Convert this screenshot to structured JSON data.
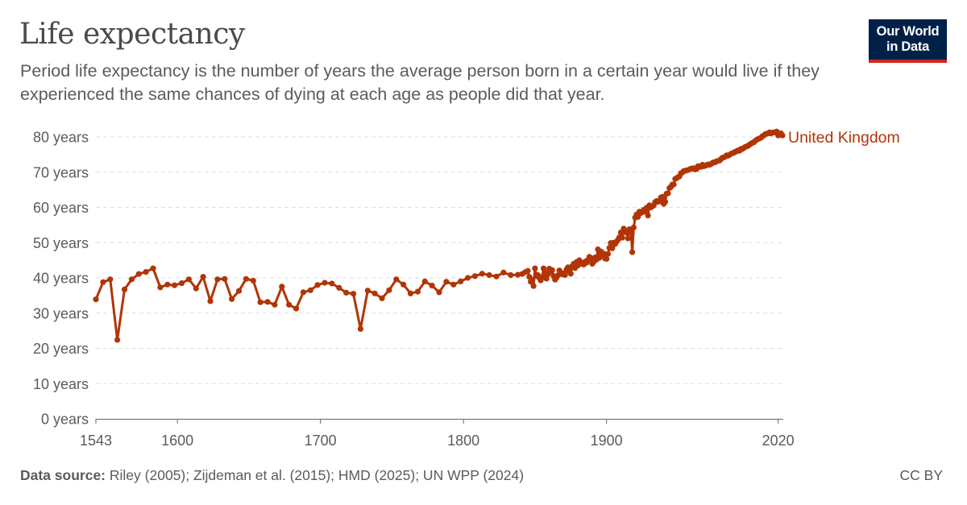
{
  "header": {
    "title": "Life expectancy",
    "subtitle": "Period life expectancy is the number of years the average person born in a certain year would live if they experienced the same chances of dying at each age as people did that year."
  },
  "logo": {
    "line1": "Our World",
    "line2": "in Data"
  },
  "footer": {
    "source_label": "Data source:",
    "source_text": "Riley (2005); Zijdeman et al. (2015); HMD (2025); UN WPP (2024)",
    "license": "CC BY"
  },
  "colors": {
    "series": "#b13507",
    "grid": "#dddddd",
    "axis": "#666666"
  },
  "chart_data": {
    "type": "line",
    "title": "Life expectancy",
    "xlabel": "",
    "ylabel": "",
    "xlim": [
      1543,
      2023
    ],
    "ylim": [
      0,
      80
    ],
    "x_ticks": [
      1543,
      1600,
      1700,
      1800,
      1900,
      2020
    ],
    "y_ticks": [
      {
        "value": 0,
        "label": "0 years"
      },
      {
        "value": 10,
        "label": "10 years"
      },
      {
        "value": 20,
        "label": "20 years"
      },
      {
        "value": 30,
        "label": "30 years"
      },
      {
        "value": 40,
        "label": "40 years"
      },
      {
        "value": 50,
        "label": "50 years"
      },
      {
        "value": 60,
        "label": "60 years"
      },
      {
        "value": 70,
        "label": "70 years"
      },
      {
        "value": 80,
        "label": "80 years"
      }
    ],
    "grid": "horizontal dashed",
    "series": [
      {
        "name": "United Kingdom",
        "color": "#b13507",
        "points": [
          [
            1543,
            33.9
          ],
          [
            1548,
            38.8
          ],
          [
            1553,
            39.6
          ],
          [
            1558,
            22.4
          ],
          [
            1563,
            36.7
          ],
          [
            1568,
            39.6
          ],
          [
            1573,
            41.1
          ],
          [
            1578,
            41.7
          ],
          [
            1583,
            42.7
          ],
          [
            1588,
            37.3
          ],
          [
            1593,
            38.1
          ],
          [
            1598,
            37.9
          ],
          [
            1603,
            38.5
          ],
          [
            1608,
            39.6
          ],
          [
            1613,
            37.0
          ],
          [
            1618,
            40.3
          ],
          [
            1623,
            33.4
          ],
          [
            1628,
            39.6
          ],
          [
            1633,
            39.7
          ],
          [
            1638,
            34.0
          ],
          [
            1643,
            36.3
          ],
          [
            1648,
            39.7
          ],
          [
            1653,
            39.2
          ],
          [
            1658,
            33.1
          ],
          [
            1663,
            33.2
          ],
          [
            1668,
            32.4
          ],
          [
            1673,
            37.5
          ],
          [
            1678,
            32.4
          ],
          [
            1683,
            31.3
          ],
          [
            1688,
            35.9
          ],
          [
            1693,
            36.5
          ],
          [
            1698,
            38.0
          ],
          [
            1703,
            38.6
          ],
          [
            1708,
            38.4
          ],
          [
            1713,
            37.2
          ],
          [
            1718,
            35.8
          ],
          [
            1723,
            35.5
          ],
          [
            1728,
            25.5
          ],
          [
            1733,
            36.4
          ],
          [
            1738,
            35.6
          ],
          [
            1743,
            34.2
          ],
          [
            1748,
            36.5
          ],
          [
            1753,
            39.6
          ],
          [
            1758,
            38.1
          ],
          [
            1763,
            35.6
          ],
          [
            1768,
            36.1
          ],
          [
            1773,
            39.0
          ],
          [
            1778,
            37.8
          ],
          [
            1783,
            35.9
          ],
          [
            1788,
            38.9
          ],
          [
            1793,
            38.1
          ],
          [
            1798,
            39.0
          ],
          [
            1803,
            40.0
          ],
          [
            1808,
            40.5
          ],
          [
            1813,
            41.2
          ],
          [
            1818,
            40.8
          ],
          [
            1823,
            40.4
          ],
          [
            1828,
            41.5
          ],
          [
            1833,
            40.8
          ],
          [
            1838,
            40.9
          ],
          [
            1841,
            41.1
          ],
          [
            1843,
            41.6
          ],
          [
            1845,
            42.0
          ],
          [
            1846,
            40.3
          ],
          [
            1847,
            38.9
          ],
          [
            1848,
            39.5
          ],
          [
            1849,
            37.7
          ],
          [
            1850,
            42.7
          ],
          [
            1851,
            40.5
          ],
          [
            1852,
            40.8
          ],
          [
            1853,
            40.0
          ],
          [
            1854,
            39.3
          ],
          [
            1855,
            40.2
          ],
          [
            1856,
            42.7
          ],
          [
            1857,
            41.5
          ],
          [
            1858,
            39.8
          ],
          [
            1859,
            41.0
          ],
          [
            1860,
            42.6
          ],
          [
            1861,
            41.8
          ],
          [
            1862,
            42.2
          ],
          [
            1863,
            40.5
          ],
          [
            1864,
            39.5
          ],
          [
            1865,
            40.0
          ],
          [
            1866,
            40.7
          ],
          [
            1867,
            42.1
          ],
          [
            1868,
            41.5
          ],
          [
            1869,
            41.0
          ],
          [
            1870,
            41.3
          ],
          [
            1871,
            40.8
          ],
          [
            1872,
            42.4
          ],
          [
            1873,
            43.0
          ],
          [
            1874,
            41.9
          ],
          [
            1875,
            41.2
          ],
          [
            1876,
            43.3
          ],
          [
            1877,
            44.0
          ],
          [
            1878,
            42.8
          ],
          [
            1879,
            44.5
          ],
          [
            1880,
            43.5
          ],
          [
            1881,
            45.0
          ],
          [
            1882,
            44.2
          ],
          [
            1883,
            44.0
          ],
          [
            1884,
            43.8
          ],
          [
            1885,
            44.6
          ],
          [
            1886,
            44.3
          ],
          [
            1887,
            45.1
          ],
          [
            1888,
            46.0
          ],
          [
            1889,
            45.6
          ],
          [
            1890,
            44.0
          ],
          [
            1891,
            44.5
          ],
          [
            1892,
            45.8
          ],
          [
            1893,
            45.2
          ],
          [
            1894,
            48.1
          ],
          [
            1895,
            45.7
          ],
          [
            1896,
            47.5
          ],
          [
            1897,
            46.5
          ],
          [
            1898,
            46.9
          ],
          [
            1899,
            45.5
          ],
          [
            1900,
            45.4
          ],
          [
            1901,
            46.8
          ],
          [
            1902,
            48.5
          ],
          [
            1903,
            49.9
          ],
          [
            1904,
            48.4
          ],
          [
            1905,
            50.0
          ],
          [
            1906,
            49.6
          ],
          [
            1907,
            50.3
          ],
          [
            1908,
            50.8
          ],
          [
            1909,
            51.5
          ],
          [
            1910,
            52.9
          ],
          [
            1911,
            51.4
          ],
          [
            1912,
            54.0
          ],
          [
            1913,
            53.2
          ],
          [
            1914,
            52.8
          ],
          [
            1915,
            51.2
          ],
          [
            1916,
            53.8
          ],
          [
            1917,
            53.4
          ],
          [
            1918,
            47.3
          ],
          [
            1919,
            54.3
          ],
          [
            1920,
            57.1
          ],
          [
            1921,
            58.0
          ],
          [
            1922,
            57.3
          ],
          [
            1923,
            58.8
          ],
          [
            1924,
            58.4
          ],
          [
            1925,
            58.6
          ],
          [
            1926,
            59.3
          ],
          [
            1927,
            58.8
          ],
          [
            1928,
            59.9
          ],
          [
            1929,
            57.7
          ],
          [
            1930,
            60.6
          ],
          [
            1931,
            60.0
          ],
          [
            1932,
            60.3
          ],
          [
            1933,
            60.6
          ],
          [
            1934,
            61.5
          ],
          [
            1935,
            61.8
          ],
          [
            1936,
            61.6
          ],
          [
            1937,
            61.7
          ],
          [
            1938,
            62.8
          ],
          [
            1939,
            63.0
          ],
          [
            1940,
            61.0
          ],
          [
            1941,
            61.6
          ],
          [
            1942,
            63.9
          ],
          [
            1943,
            64.0
          ],
          [
            1944,
            65.5
          ],
          [
            1945,
            65.8
          ],
          [
            1946,
            66.5
          ],
          [
            1947,
            66.5
          ],
          [
            1948,
            68.1
          ],
          [
            1949,
            68.3
          ],
          [
            1950,
            68.6
          ],
          [
            1951,
            68.8
          ],
          [
            1952,
            69.7
          ],
          [
            1953,
            69.9
          ],
          [
            1954,
            70.3
          ],
          [
            1955,
            70.4
          ],
          [
            1956,
            70.5
          ],
          [
            1957,
            70.6
          ],
          [
            1958,
            70.8
          ],
          [
            1959,
            71.0
          ],
          [
            1960,
            71.0
          ],
          [
            1961,
            71.1
          ],
          [
            1962,
            70.8
          ],
          [
            1963,
            70.9
          ],
          [
            1964,
            71.7
          ],
          [
            1965,
            71.6
          ],
          [
            1966,
            71.5
          ],
          [
            1967,
            72.1
          ],
          [
            1968,
            71.7
          ],
          [
            1969,
            71.8
          ],
          [
            1970,
            72.0
          ],
          [
            1971,
            72.2
          ],
          [
            1972,
            72.1
          ],
          [
            1973,
            72.3
          ],
          [
            1974,
            72.6
          ],
          [
            1975,
            72.8
          ],
          [
            1976,
            72.8
          ],
          [
            1977,
            73.1
          ],
          [
            1978,
            73.2
          ],
          [
            1979,
            73.3
          ],
          [
            1980,
            73.7
          ],
          [
            1981,
            74.1
          ],
          [
            1982,
            74.2
          ],
          [
            1983,
            74.4
          ],
          [
            1984,
            74.8
          ],
          [
            1985,
            74.7
          ],
          [
            1986,
            74.9
          ],
          [
            1987,
            75.2
          ],
          [
            1988,
            75.4
          ],
          [
            1989,
            75.5
          ],
          [
            1990,
            75.8
          ],
          [
            1991,
            75.9
          ],
          [
            1992,
            76.2
          ],
          [
            1993,
            76.1
          ],
          [
            1994,
            76.6
          ],
          [
            1995,
            76.6
          ],
          [
            1996,
            76.9
          ],
          [
            1997,
            77.2
          ],
          [
            1998,
            77.3
          ],
          [
            1999,
            77.5
          ],
          [
            2000,
            77.8
          ],
          [
            2001,
            78.1
          ],
          [
            2002,
            78.3
          ],
          [
            2003,
            78.5
          ],
          [
            2004,
            78.9
          ],
          [
            2005,
            79.2
          ],
          [
            2006,
            79.4
          ],
          [
            2007,
            79.6
          ],
          [
            2008,
            79.8
          ],
          [
            2009,
            80.2
          ],
          [
            2010,
            80.4
          ],
          [
            2011,
            80.8
          ],
          [
            2012,
            80.9
          ],
          [
            2013,
            81.0
          ],
          [
            2014,
            81.3
          ],
          [
            2015,
            81.0
          ],
          [
            2016,
            81.2
          ],
          [
            2017,
            81.3
          ],
          [
            2018,
            81.3
          ],
          [
            2019,
            81.5
          ],
          [
            2020,
            80.4
          ],
          [
            2021,
            80.7
          ],
          [
            2022,
            81.0
          ],
          [
            2023,
            80.4
          ]
        ]
      }
    ]
  }
}
